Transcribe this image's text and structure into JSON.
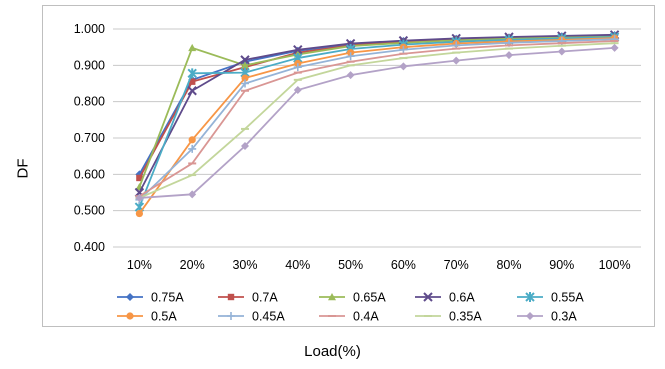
{
  "chart_data": {
    "type": "line",
    "title": "",
    "xlabel": "Load(%)",
    "ylabel": "DF",
    "categories": [
      "10%",
      "20%",
      "30%",
      "40%",
      "50%",
      "60%",
      "70%",
      "80%",
      "90%",
      "100%"
    ],
    "ylim": [
      0.4,
      1.0
    ],
    "yticks": [
      "0.400",
      "0.500",
      "0.600",
      "0.700",
      "0.800",
      "0.900",
      "1.000"
    ],
    "grid": "horizontal",
    "legend_position": "bottom",
    "series": [
      {
        "name": "0.75A",
        "color": "#4472c4",
        "marker": "diamond",
        "values": [
          0.6,
          0.86,
          0.91,
          0.94,
          0.958,
          0.967,
          0.973,
          0.977,
          0.98,
          0.983
        ]
      },
      {
        "name": "0.7A",
        "color": "#c0504d",
        "marker": "square",
        "values": [
          0.59,
          0.855,
          0.895,
          0.935,
          0.955,
          0.965,
          0.972,
          0.976,
          0.979,
          0.982
        ]
      },
      {
        "name": "0.65A",
        "color": "#9bbb59",
        "marker": "triangle",
        "values": [
          0.565,
          0.948,
          0.9,
          0.93,
          0.953,
          0.962,
          0.969,
          0.974,
          0.977,
          0.98
        ]
      },
      {
        "name": "0.6A",
        "color": "#5f4b8b",
        "marker": "x",
        "values": [
          0.55,
          0.83,
          0.915,
          0.943,
          0.96,
          0.968,
          0.974,
          0.978,
          0.981,
          0.984
        ]
      },
      {
        "name": "0.55A",
        "color": "#4bacc6",
        "marker": "star",
        "values": [
          0.51,
          0.878,
          0.88,
          0.92,
          0.945,
          0.957,
          0.965,
          0.97,
          0.974,
          0.978
        ]
      },
      {
        "name": "0.5A",
        "color": "#f79646",
        "marker": "circle",
        "values": [
          0.492,
          0.695,
          0.865,
          0.905,
          0.935,
          0.95,
          0.96,
          0.966,
          0.97,
          0.975
        ]
      },
      {
        "name": "0.45A",
        "color": "#95b3d7",
        "marker": "plus",
        "values": [
          0.53,
          0.67,
          0.85,
          0.895,
          0.925,
          0.943,
          0.955,
          0.962,
          0.967,
          0.972
        ]
      },
      {
        "name": "0.4A",
        "color": "#d99694",
        "marker": "dash",
        "values": [
          0.54,
          0.63,
          0.83,
          0.88,
          0.91,
          0.932,
          0.946,
          0.955,
          0.961,
          0.967
        ]
      },
      {
        "name": "0.35A",
        "color": "#c3d69b",
        "marker": "dash",
        "values": [
          0.535,
          0.598,
          0.725,
          0.86,
          0.9,
          0.92,
          0.935,
          0.946,
          0.954,
          0.961
        ]
      },
      {
        "name": "0.3A",
        "color": "#b3a2c7",
        "marker": "diamond",
        "values": [
          0.535,
          0.545,
          0.678,
          0.832,
          0.873,
          0.897,
          0.913,
          0.928,
          0.938,
          0.948
        ]
      }
    ]
  }
}
